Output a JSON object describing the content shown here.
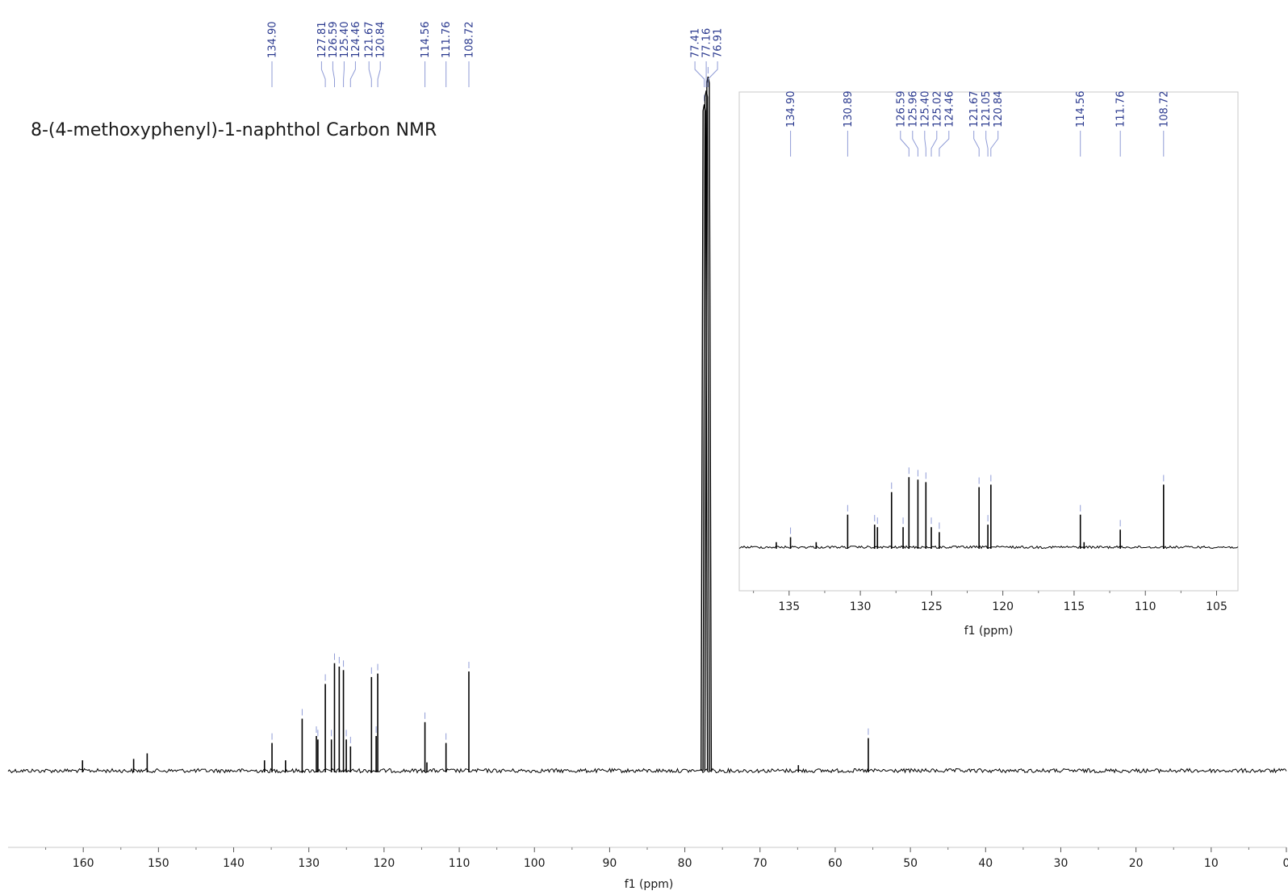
{
  "chart_data": [
    {
      "type": "line",
      "title": "8-(4-methoxyphenyl)-1-naphthol Carbon NMR",
      "xlabel": "f1 (ppm)",
      "ylabel": "",
      "xlim": [
        170,
        0
      ],
      "x_reversed": true,
      "ylim": [
        -0.08,
        1.0
      ],
      "ticks": [
        160,
        150,
        140,
        130,
        120,
        110,
        100,
        90,
        80,
        70,
        60,
        50,
        40,
        30,
        20,
        10,
        0
      ],
      "tick_labels": [
        "160",
        "150",
        "140",
        "130",
        "120",
        "110",
        "100",
        "90",
        "80",
        "70",
        "60",
        "50",
        "40",
        "30",
        "20",
        "10",
        "0"
      ],
      "peaks": [
        {
          "x": 160.1,
          "y": 0.015
        },
        {
          "x": 153.3,
          "y": 0.017
        },
        {
          "x": 151.5,
          "y": 0.025
        },
        {
          "x": 135.9,
          "y": 0.015
        },
        {
          "x": 134.9,
          "y": 0.04
        },
        {
          "x": 133.1,
          "y": 0.015
        },
        {
          "x": 130.89,
          "y": 0.075
        },
        {
          "x": 129.0,
          "y": 0.05
        },
        {
          "x": 128.8,
          "y": 0.045
        },
        {
          "x": 127.81,
          "y": 0.125
        },
        {
          "x": 127.0,
          "y": 0.045
        },
        {
          "x": 126.59,
          "y": 0.155
        },
        {
          "x": 125.96,
          "y": 0.15
        },
        {
          "x": 125.4,
          "y": 0.145
        },
        {
          "x": 125.02,
          "y": 0.045
        },
        {
          "x": 124.46,
          "y": 0.035
        },
        {
          "x": 121.67,
          "y": 0.135
        },
        {
          "x": 121.05,
          "y": 0.05
        },
        {
          "x": 120.84,
          "y": 0.14
        },
        {
          "x": 114.56,
          "y": 0.07
        },
        {
          "x": 114.3,
          "y": 0.012
        },
        {
          "x": 111.76,
          "y": 0.04
        },
        {
          "x": 108.72,
          "y": 0.143
        },
        {
          "x": 77.41,
          "y": 0.96
        },
        {
          "x": 77.16,
          "y": 0.98
        },
        {
          "x": 76.91,
          "y": 1.0
        },
        {
          "x": 64.9,
          "y": 0.008
        },
        {
          "x": 55.6,
          "y": 0.047
        }
      ],
      "peak_labels": [
        "134.90",
        "127.81",
        "126.59",
        "125.40",
        "124.46",
        "121.67",
        "120.84",
        "114.56",
        "111.76",
        "108.72",
        "77.41",
        "77.16",
        "76.91"
      ],
      "peak_label_positions": [
        134.9,
        127.81,
        126.59,
        125.4,
        124.46,
        121.67,
        120.84,
        114.56,
        111.76,
        108.72,
        77.41,
        77.16,
        76.91
      ],
      "grid": false
    },
    {
      "type": "line",
      "title": "",
      "xlabel": "f1 (ppm)",
      "ylabel": "",
      "xlim": [
        138.5,
        103.5
      ],
      "x_reversed": true,
      "ylim": [
        -0.2,
        1.0
      ],
      "ticks": [
        135,
        130,
        125,
        120,
        115,
        110,
        105
      ],
      "tick_labels": [
        "135",
        "130",
        "125",
        "120",
        "115",
        "110",
        "105"
      ],
      "peaks": [
        {
          "x": 135.9,
          "y": 0.02
        },
        {
          "x": 134.9,
          "y": 0.04
        },
        {
          "x": 133.1,
          "y": 0.02
        },
        {
          "x": 130.89,
          "y": 0.13
        },
        {
          "x": 129.0,
          "y": 0.09
        },
        {
          "x": 128.8,
          "y": 0.08
        },
        {
          "x": 127.81,
          "y": 0.22
        },
        {
          "x": 127.0,
          "y": 0.08
        },
        {
          "x": 126.59,
          "y": 0.28
        },
        {
          "x": 125.96,
          "y": 0.27
        },
        {
          "x": 125.4,
          "y": 0.26
        },
        {
          "x": 125.02,
          "y": 0.08
        },
        {
          "x": 124.46,
          "y": 0.06
        },
        {
          "x": 121.67,
          "y": 0.24
        },
        {
          "x": 121.05,
          "y": 0.09
        },
        {
          "x": 120.84,
          "y": 0.25
        },
        {
          "x": 114.56,
          "y": 0.13
        },
        {
          "x": 114.3,
          "y": 0.02
        },
        {
          "x": 111.76,
          "y": 0.07
        },
        {
          "x": 108.72,
          "y": 0.25
        }
      ],
      "peak_labels": [
        "134.90",
        "130.89",
        "126.59",
        "125.96",
        "125.40",
        "125.02",
        "124.46",
        "121.67",
        "121.05",
        "120.84",
        "114.56",
        "111.76",
        "108.72"
      ],
      "peak_label_positions": [
        134.9,
        130.89,
        126.59,
        125.96,
        125.4,
        125.02,
        124.46,
        121.67,
        121.05,
        120.84,
        114.56,
        111.76,
        108.72
      ],
      "grid": false
    }
  ],
  "colors": {
    "trace": "#000000",
    "labels": "#2b3a8f",
    "leaders": "#8f9bd6",
    "frame": "#c8c8c8"
  }
}
